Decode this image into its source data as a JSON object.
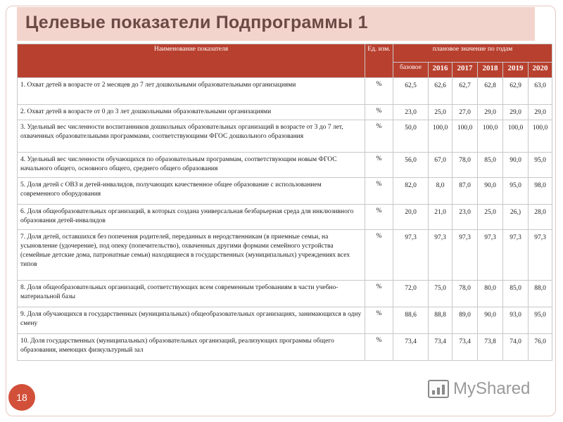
{
  "title": "Целевые показатели Подпрограммы 1",
  "page_number": "18",
  "logo_text": "MyShared",
  "header": {
    "name": "Наименование показателя",
    "unit": "Ед. изм.",
    "planned": "плановое значение по годам",
    "base": "базовое",
    "years": [
      "2016",
      "2017",
      "2018",
      "2019",
      "2020"
    ]
  },
  "rows": [
    {
      "name": "1. Охват детей в возрасте от 2 месяцев до 7 лет дошкольными образовательными организациями",
      "unit": "%",
      "values": [
        "62,5",
        "62,6",
        "62,7",
        "62,8",
        "62,9",
        "63,0"
      ]
    },
    {
      "name": "2. Охват детей в возрасте от 0 до 3 лет дошкольными образовательными организациями",
      "unit": "%",
      "values": [
        "23,0",
        "25,0",
        "27,0",
        "29,0",
        "29,0",
        "29,0"
      ]
    },
    {
      "name": "3. Удельный вес численности воспитанников дошкольных образовательных организаций в возрасте от 3 до 7 лет, охваченных образовательными программами, соответствующими ФГОС дошкольного образования",
      "unit": "%",
      "values": [
        "50,0",
        "100,0",
        "100,0",
        "100,0",
        "100,0",
        "100,0"
      ]
    },
    {
      "name": "4. Удельный вес численности обучающихся по образовательным программам, соответствующим новым ФГОС начального общего, основного общего, среднего общего образования",
      "unit": "%",
      "values": [
        "56,0",
        "67,0",
        "78,0",
        "85,0",
        "90,0",
        "95,0"
      ]
    },
    {
      "name": "5. Доля детей с ОВЗ и детей-инвалидов, получающих качественное общее образование с использованием современного оборудования",
      "unit": "%",
      "values": [
        "82,0",
        "8,0",
        "87,0",
        "90,0",
        "95,0",
        "98,0"
      ]
    },
    {
      "name": "6. Доля общеобразовательных организаций, в которых создана универсальная безбарьерная среда для инклюзивного образования детей-инвалидов",
      "unit": "%",
      "values": [
        "20,0",
        "21,0",
        "23,0",
        "25,0",
        "26,)",
        "28,0"
      ]
    },
    {
      "name": "7. Доля детей, оставшихся без попечения родителей, переданных в неродственникам (в приемные семьи, на усыновление (удочерение), под опеку (попечительство), охваченных другими формами семейного устройства (семейные детские дома, патронатные семьи) находящиеся в государственных (муниципальных) учреждениях всех типов",
      "unit": "%",
      "values": [
        "97,3",
        "97,3",
        "97,3",
        "97,3",
        "97,3",
        "97,3"
      ]
    },
    {
      "name": "8. Доля общеобразовательных организаций, соответствующих всем современным требованиям в части учебно-материальной базы",
      "unit": "%",
      "values": [
        "72,0",
        "75,0",
        "78,0",
        "80,0",
        "85,0",
        "88,0"
      ]
    },
    {
      "name": "9. Доля обучающихся в государственных (муниципальных) общеобразовательных организациях, занимающихся в одну смену",
      "unit": "%",
      "values": [
        "88,6",
        "88,8",
        "89,0",
        "90,0",
        "93,0",
        "95,0"
      ]
    },
    {
      "name": "10. Доля государственных (муниципальных) образовательных организаций, реализующих программы общего образования, имеющих физкультурный зал",
      "unit": "%",
      "values": [
        "73,4",
        "73,4",
        "73,4",
        "73,8",
        "74,0",
        "76,0"
      ]
    }
  ]
}
